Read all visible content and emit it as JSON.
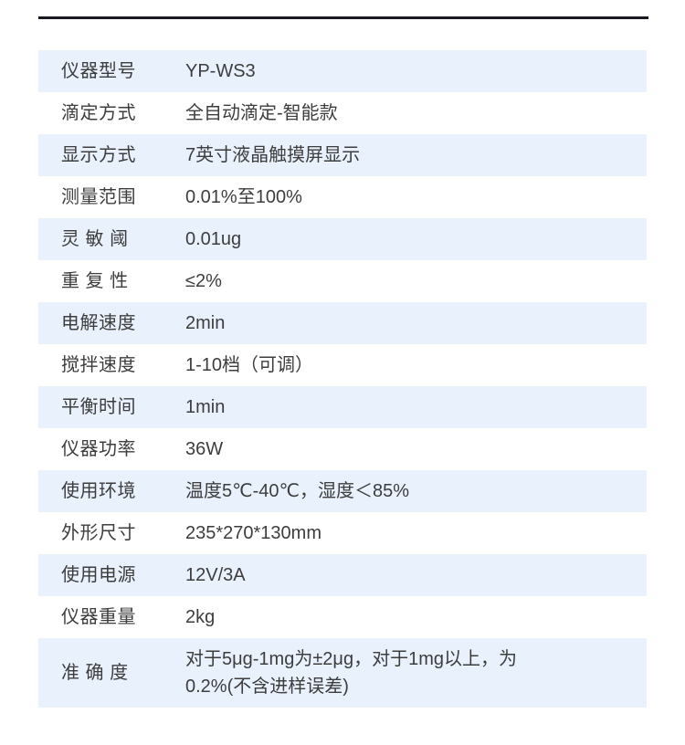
{
  "colors": {
    "row_alt_background": "#e9f1fc",
    "row_plain_background": "#ffffff",
    "text": "#3d3d3d",
    "top_rule": "#191921"
  },
  "table": {
    "rows": [
      {
        "label": "仪器型号",
        "value": "YP-WS3"
      },
      {
        "label": "滴定方式",
        "value": "全自动滴定-智能款"
      },
      {
        "label": "显示方式",
        "value": "7英寸液晶触摸屏显示"
      },
      {
        "label": "测量范围",
        "value": "0.01%至100%"
      },
      {
        "label": "灵 敏 阈",
        "value": "0.01ug"
      },
      {
        "label": "重 复 性",
        "value": "≤2%"
      },
      {
        "label": "电解速度",
        "value": "2min"
      },
      {
        "label": "搅拌速度",
        "value": "1-10档（可调）"
      },
      {
        "label": "平衡时间",
        "value": "1min"
      },
      {
        "label": "仪器功率",
        "value": "36W"
      },
      {
        "label": "使用环境",
        "value": "温度5℃-40℃，湿度＜85%"
      },
      {
        "label": "外形尺寸",
        "value": "235*270*130mm"
      },
      {
        "label": "使用电源",
        "value": "12V/3A"
      },
      {
        "label": "仪器重量",
        "value": "2kg"
      },
      {
        "label": "准 确 度",
        "value": "对于5μg-1mg为±2μg，对于1mg以上，为\n0.2%(不含进样误差)"
      }
    ]
  }
}
